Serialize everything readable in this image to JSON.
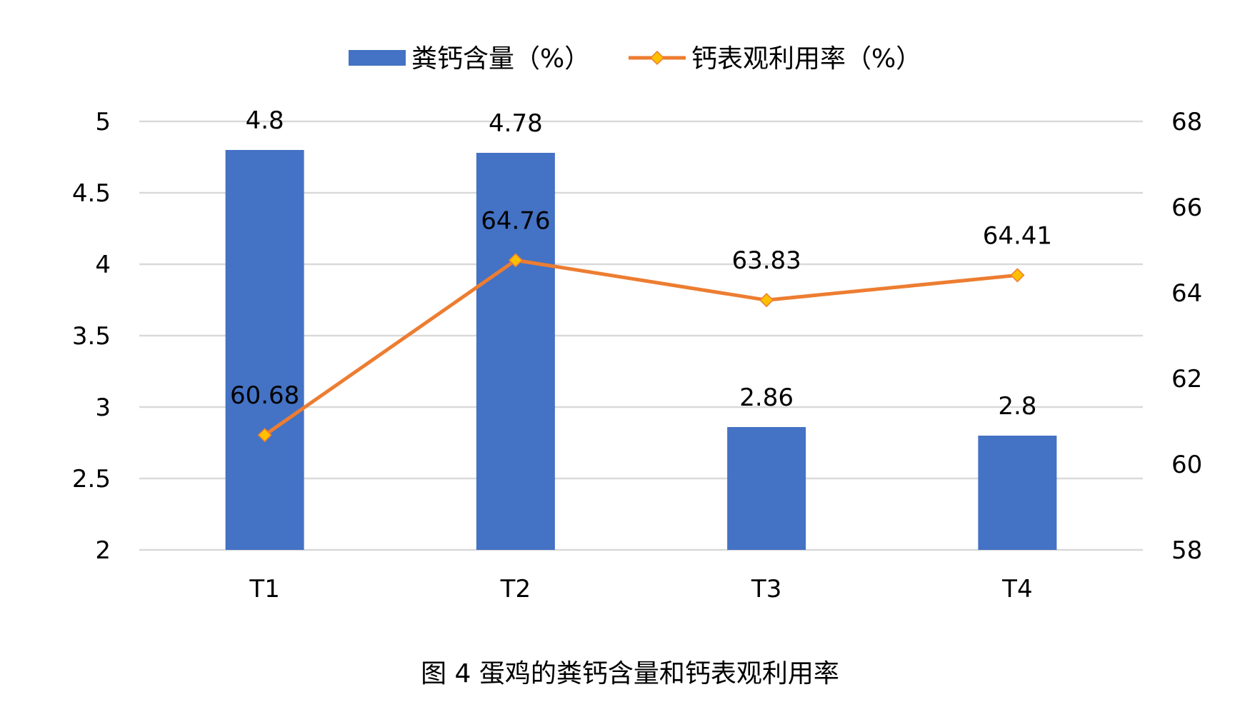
{
  "caption": "图 4  蛋鸡的粪钙含量和钙表观利用率",
  "chart_data": {
    "type": "bar",
    "title": "",
    "categories": [
      "T1",
      "T2",
      "T3",
      "T4"
    ],
    "series": [
      {
        "name": "粪钙含量（%）",
        "type": "bar",
        "axis": "left",
        "color": "#4472C4",
        "values": [
          4.8,
          4.78,
          2.86,
          2.8
        ],
        "labels": [
          "4.8",
          "4.78",
          "2.86",
          "2.8"
        ]
      },
      {
        "name": "钙表观利用率（%）",
        "type": "line",
        "axis": "right",
        "color": "#ED7D31",
        "marker_color": "#FFC000",
        "marker": "diamond",
        "values": [
          60.68,
          64.76,
          63.83,
          64.41
        ],
        "labels": [
          "60.68",
          "64.76",
          "63.83",
          "64.41"
        ]
      }
    ],
    "y_left": {
      "min": 2,
      "max": 5,
      "ticks": [
        "2",
        "2.5",
        "3",
        "3.5",
        "4",
        "4.5",
        "5"
      ]
    },
    "y_right": {
      "min": 58,
      "max": 68,
      "ticks": [
        "58",
        "60",
        "62",
        "64",
        "66",
        "68"
      ]
    },
    "grid": true,
    "legend": "top-center"
  }
}
